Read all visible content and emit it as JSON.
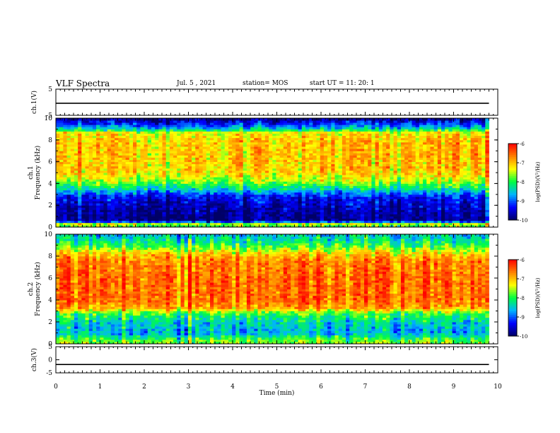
{
  "header": {
    "title": "VLF Spectra",
    "date": "Jul. 5 , 2021",
    "station": "station= MOS",
    "start": "start UT = 11: 20: 1"
  },
  "chart_data": [
    {
      "type": "line",
      "panel": "ch1-waveform",
      "ylabel": "ch.1(V)",
      "ylim": [
        -5,
        5
      ],
      "y_ticks": [
        "5",
        "-5"
      ],
      "xlim": [
        0,
        10
      ],
      "series": [
        {
          "x": [
            0,
            9.8
          ],
          "values": [
            -0.4,
            -0.4
          ]
        }
      ],
      "grid": false
    },
    {
      "type": "heatmap",
      "panel": "ch1-spectrogram",
      "ylabel": "ch.1\nFrequency (kHz)",
      "ylim": [
        0,
        10
      ],
      "y_ticks": [
        "0",
        "2",
        "4",
        "6",
        "8",
        "10"
      ],
      "xlim": [
        0,
        10
      ],
      "data_end_min": 9.8,
      "profile": [
        {
          "f": 0.0,
          "v": -8.0
        },
        {
          "f": 0.3,
          "v": -7.5
        },
        {
          "f": 0.6,
          "v": -9.8
        },
        {
          "f": 1.2,
          "v": -9.8
        },
        {
          "f": 2.0,
          "v": -9.6
        },
        {
          "f": 2.8,
          "v": -9.3
        },
        {
          "f": 3.4,
          "v": -8.5
        },
        {
          "f": 4.2,
          "v": -7.6
        },
        {
          "f": 5.0,
          "v": -7.1
        },
        {
          "f": 6.5,
          "v": -7.0
        },
        {
          "f": 8.0,
          "v": -7.05
        },
        {
          "f": 8.7,
          "v": -7.3
        },
        {
          "f": 9.0,
          "v": -8.4
        },
        {
          "f": 9.5,
          "v": -9.2
        },
        {
          "f": 10.0,
          "v": -9.9
        }
      ],
      "colorbar": {
        "label": "log(PSD)(V²/Hz)",
        "min": -10,
        "max": -6,
        "ticks": [
          "-6",
          "-7",
          "-8",
          "-9",
          "-10"
        ]
      }
    },
    {
      "type": "heatmap",
      "panel": "ch2-spectrogram",
      "ylabel": "ch.2\nFrequency (kHz)",
      "ylim": [
        0,
        10
      ],
      "y_ticks": [
        "0",
        "2",
        "4",
        "6",
        "8",
        "10"
      ],
      "xlim": [
        0,
        10
      ],
      "data_end_min": 9.8,
      "profile": [
        {
          "f": 0.0,
          "v": -7.6
        },
        {
          "f": 0.4,
          "v": -7.8
        },
        {
          "f": 1.0,
          "v": -8.6
        },
        {
          "f": 2.0,
          "v": -8.4
        },
        {
          "f": 2.8,
          "v": -7.8
        },
        {
          "f": 3.3,
          "v": -6.8
        },
        {
          "f": 4.0,
          "v": -6.5
        },
        {
          "f": 6.0,
          "v": -6.5
        },
        {
          "f": 7.5,
          "v": -6.6
        },
        {
          "f": 8.2,
          "v": -7.0
        },
        {
          "f": 8.8,
          "v": -7.7
        },
        {
          "f": 9.4,
          "v": -8.2
        },
        {
          "f": 10.0,
          "v": -8.5
        }
      ],
      "colorbar": {
        "label": "log(PSD)(V²/Hz)",
        "min": -10,
        "max": -6,
        "ticks": [
          "-6",
          "-7",
          "-8",
          "-9",
          "-10"
        ]
      }
    },
    {
      "type": "line",
      "panel": "ch3-waveform",
      "ylabel": "ch.3(V)",
      "ylim": [
        -5,
        5
      ],
      "y_ticks": [
        "5",
        "0",
        "-5"
      ],
      "xlim": [
        0,
        10
      ],
      "series": [
        {
          "x": [
            0,
            9.8
          ],
          "values": [
            -1.8,
            -1.8
          ]
        }
      ],
      "grid": false
    }
  ],
  "xaxis": {
    "label": "Time (min)",
    "ticks": [
      "0",
      "1",
      "2",
      "3",
      "4",
      "5",
      "6",
      "7",
      "8",
      "9",
      "10"
    ]
  },
  "colors": {
    "colormap": [
      "#000066",
      "#0000ff",
      "#00b4ff",
      "#00ff40",
      "#ffff00",
      "#ff8000",
      "#ff0000"
    ]
  }
}
